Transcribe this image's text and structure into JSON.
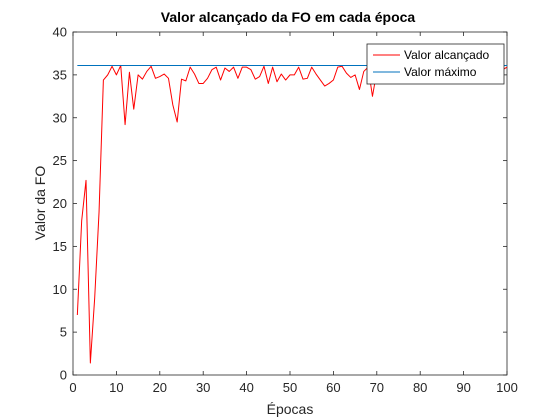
{
  "chart_data": {
    "type": "line",
    "title": "Valor alcançado da FO em cada época",
    "xlabel": "Épocas",
    "ylabel": "Valor da FO",
    "xlim": [
      0,
      100
    ],
    "ylim": [
      0,
      40
    ],
    "xticks": [
      0,
      10,
      20,
      30,
      40,
      50,
      60,
      70,
      80,
      90,
      100
    ],
    "yticks": [
      0,
      5,
      10,
      15,
      20,
      25,
      30,
      35,
      40
    ],
    "grid": false,
    "legend_position": "top-right",
    "series": [
      {
        "name": "Valor alcançado",
        "color": "#ff0000",
        "x": [
          1,
          2,
          3,
          4,
          5,
          6,
          7,
          8,
          9,
          10,
          11,
          12,
          13,
          14,
          15,
          16,
          17,
          18,
          19,
          20,
          21,
          22,
          23,
          24,
          25,
          26,
          27,
          28,
          29,
          30,
          31,
          32,
          33,
          34,
          35,
          36,
          37,
          38,
          39,
          40,
          41,
          42,
          43,
          44,
          45,
          46,
          47,
          48,
          49,
          50,
          51,
          52,
          53,
          54,
          55,
          56,
          57,
          58,
          59,
          60,
          61,
          62,
          63,
          64,
          65,
          66,
          67,
          68,
          69,
          70,
          71,
          72,
          73,
          74,
          75,
          76,
          77,
          78,
          79,
          80,
          81,
          82,
          83,
          84,
          85,
          86,
          87,
          88,
          89,
          90,
          91,
          92,
          93,
          94,
          95,
          96,
          97,
          98,
          99,
          100
        ],
        "values": [
          7.0,
          18.0,
          22.7,
          1.4,
          9.0,
          19.0,
          34.4,
          35.0,
          36.0,
          35.0,
          36.1,
          29.2,
          35.3,
          31.0,
          35.0,
          34.5,
          35.4,
          36.0,
          34.6,
          34.8,
          35.1,
          34.6,
          31.5,
          29.5,
          34.5,
          34.3,
          35.9,
          35.1,
          34.0,
          34.0,
          34.6,
          35.6,
          35.9,
          34.4,
          35.8,
          35.4,
          35.9,
          34.6,
          35.9,
          35.9,
          35.6,
          34.5,
          34.8,
          36.0,
          34.0,
          35.9,
          34.2,
          35.1,
          34.4,
          35.0,
          35.0,
          35.9,
          34.5,
          34.6,
          35.9,
          35.1,
          34.4,
          33.7,
          34.0,
          34.4,
          35.9,
          36.0,
          35.2,
          34.7,
          35.0,
          33.3,
          35.4,
          35.9,
          32.5,
          35.4,
          35.8,
          35.9,
          35.7,
          35.9,
          35.9,
          35.8,
          35.5,
          35.9,
          35.7,
          35.9,
          35.8,
          36.0,
          35.9,
          35.6,
          35.9,
          35.9,
          35.8,
          35.9,
          35.7,
          35.9,
          35.9,
          35.8,
          35.9,
          35.9,
          35.9,
          35.8,
          35.9,
          35.9,
          35.6,
          35.9
        ]
      },
      {
        "name": "Valor máximo",
        "color": "#0072bd",
        "x": [
          1,
          100
        ],
        "values": [
          36.1,
          36.1
        ]
      }
    ]
  }
}
